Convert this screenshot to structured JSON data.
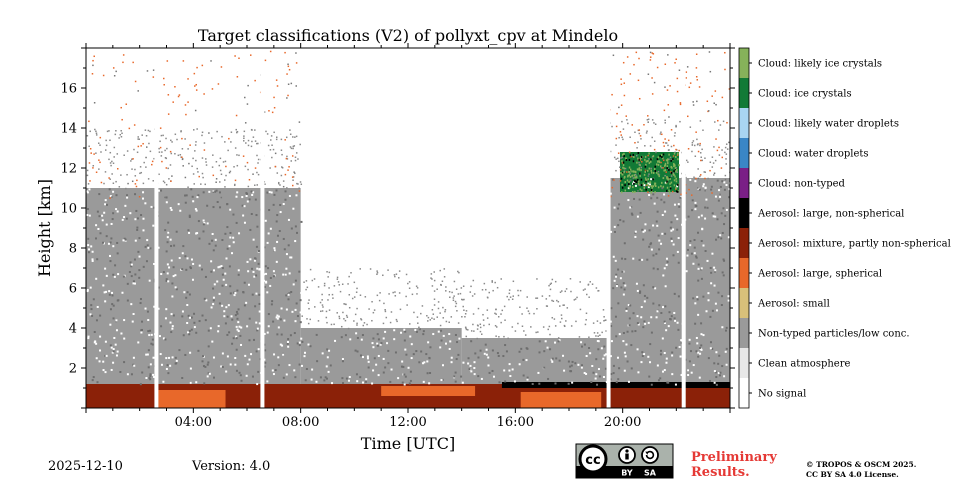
{
  "chart_data": {
    "type": "heatmap",
    "title": "Target classifications (V2) of pollyxt_cpv at Mindelo",
    "xlabel": "Time [UTC]",
    "ylabel": "Height [km]",
    "x_unit": "hours UTC",
    "xlim": [
      0,
      24
    ],
    "ylim": [
      0,
      18
    ],
    "x_ticks": [
      {
        "value": 4,
        "label": "04:00"
      },
      {
        "value": 8,
        "label": "08:00"
      },
      {
        "value": 12,
        "label": "12:00"
      },
      {
        "value": 16,
        "label": "16:00"
      },
      {
        "value": 20,
        "label": "20:00"
      }
    ],
    "y_ticks": [
      {
        "value": 2,
        "label": "2"
      },
      {
        "value": 4,
        "label": "4"
      },
      {
        "value": 6,
        "label": "6"
      },
      {
        "value": 8,
        "label": "8"
      },
      {
        "value": 10,
        "label": "10"
      },
      {
        "value": 12,
        "label": "12"
      },
      {
        "value": 14,
        "label": "14"
      },
      {
        "value": 16,
        "label": "16"
      }
    ],
    "classes": [
      {
        "label": "No signal",
        "color": "#ffffff"
      },
      {
        "label": "Clean atmosphere",
        "color": "#e8e8e8"
      },
      {
        "label": "Non-typed particles/low conc.",
        "color": "#9a9a9a"
      },
      {
        "label": "Aerosol: small",
        "color": "#d8c07a"
      },
      {
        "label": "Aerosol: large, spherical",
        "color": "#e8682a"
      },
      {
        "label": "Aerosol: mixture, partly non-spherical",
        "color": "#8b2108"
      },
      {
        "label": "Aerosol: large, non-spherical",
        "color": "#000000"
      },
      {
        "label": "Cloud: non-typed",
        "color": "#7a1f86"
      },
      {
        "label": "Cloud: water droplets",
        "color": "#3a86c6"
      },
      {
        "label": "Cloud: likely water droplets",
        "color": "#a9d5f2"
      },
      {
        "label": "Cloud: ice crystals",
        "color": "#127a36"
      },
      {
        "label": "Cloud: likely ice crystals",
        "color": "#86b25a"
      }
    ],
    "regions": [
      {
        "class": "Aerosol: mixture, partly non-spherical",
        "t_start": 0,
        "t_end": 24,
        "h_bottom": 0,
        "h_top": 1.2
      },
      {
        "class": "Aerosol: large, spherical",
        "t_start": 2.7,
        "t_end": 5.2,
        "h_bottom": 0,
        "h_top": 0.9
      },
      {
        "class": "Aerosol: large, spherical",
        "t_start": 11.0,
        "t_end": 14.5,
        "h_bottom": 0.6,
        "h_top": 1.1
      },
      {
        "class": "Aerosol: large, spherical",
        "t_start": 16.2,
        "t_end": 19.2,
        "h_bottom": 0,
        "h_top": 0.8
      },
      {
        "class": "Aerosol: large, non-spherical",
        "t_start": 15.5,
        "t_end": 24,
        "h_bottom": 1.0,
        "h_top": 1.3
      },
      {
        "class": "Non-typed particles/low conc.",
        "t_start": 0,
        "t_end": 8.0,
        "h_bottom": 1.2,
        "h_top": 11.0
      },
      {
        "class": "Non-typed particles/low conc.",
        "t_start": 8.0,
        "t_end": 14.0,
        "h_bottom": 1.2,
        "h_top": 4.0
      },
      {
        "class": "Non-typed particles/low conc.",
        "t_start": 14.0,
        "t_end": 19.5,
        "h_bottom": 1.2,
        "h_top": 3.5
      },
      {
        "class": "Non-typed particles/low conc.",
        "t_start": 19.5,
        "t_end": 24,
        "h_bottom": 1.2,
        "h_top": 11.5
      },
      {
        "class": "Cloud: ice crystals",
        "t_start": 19.9,
        "t_end": 22.1,
        "h_bottom": 10.8,
        "h_top": 12.8
      }
    ],
    "colorbar": {
      "placement": "right"
    }
  },
  "footer": {
    "date": "2025-12-10",
    "version": "Version: 4.0",
    "preliminary_line1": "Preliminary",
    "preliminary_line2": "Results.",
    "copyright_line1": "© TROPOS & OSCM 2025.",
    "copyright_line2": "CC BY SA 4.0 License.",
    "license_badge": {
      "cc": "cc",
      "by": "BY",
      "sa": "SA"
    }
  },
  "colors": {
    "preliminary": "#e53935",
    "axis": "#000000"
  }
}
